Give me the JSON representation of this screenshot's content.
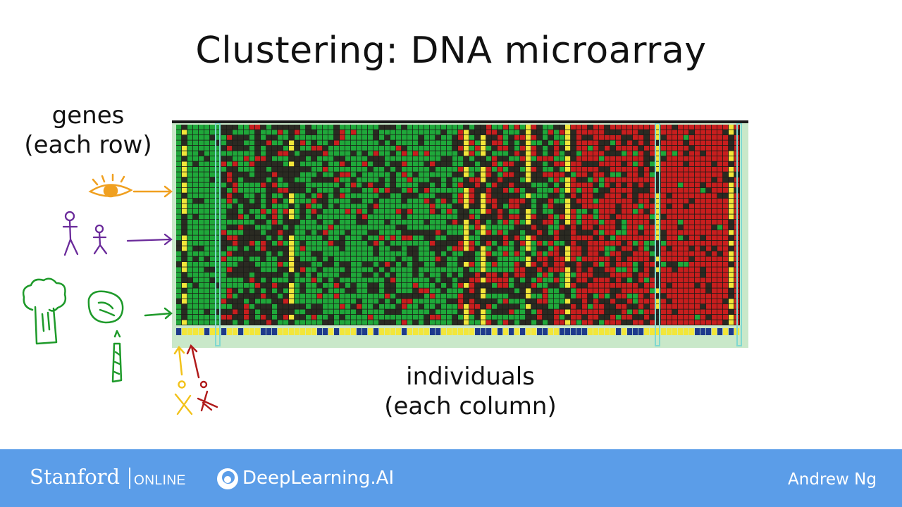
{
  "slide": {
    "title": "Clustering: DNA microarray",
    "rows_label_line1": "genes",
    "rows_label_line2": "(each row)",
    "columns_label_line1": "individuals",
    "columns_label_line2": "(each column)"
  },
  "footer": {
    "stanford": "Stanford",
    "online": "ONLINE",
    "deeplearning": "DeepLearning.AI",
    "author": "Andrew Ng"
  },
  "doodles": {
    "eye": "eye-icon",
    "people": "stick-figures-icon",
    "vegetables": "broccoli-lettuce-asparagus-icon",
    "individuals": "stick-figure-individuals-icon"
  },
  "colors": {
    "green": "#1fa83a",
    "red": "#c81e1e",
    "dark": "#2a2a22",
    "yellow": "#f2e63a",
    "navy": "#1e3a8c",
    "footer": "#5b9de8",
    "annotation_orange": "#f0a020",
    "annotation_purple": "#6a2a9a",
    "annotation_green": "#1e9a2a",
    "annotation_red": "#b01a1a",
    "annotation_yellow": "#f2c21a"
  }
}
